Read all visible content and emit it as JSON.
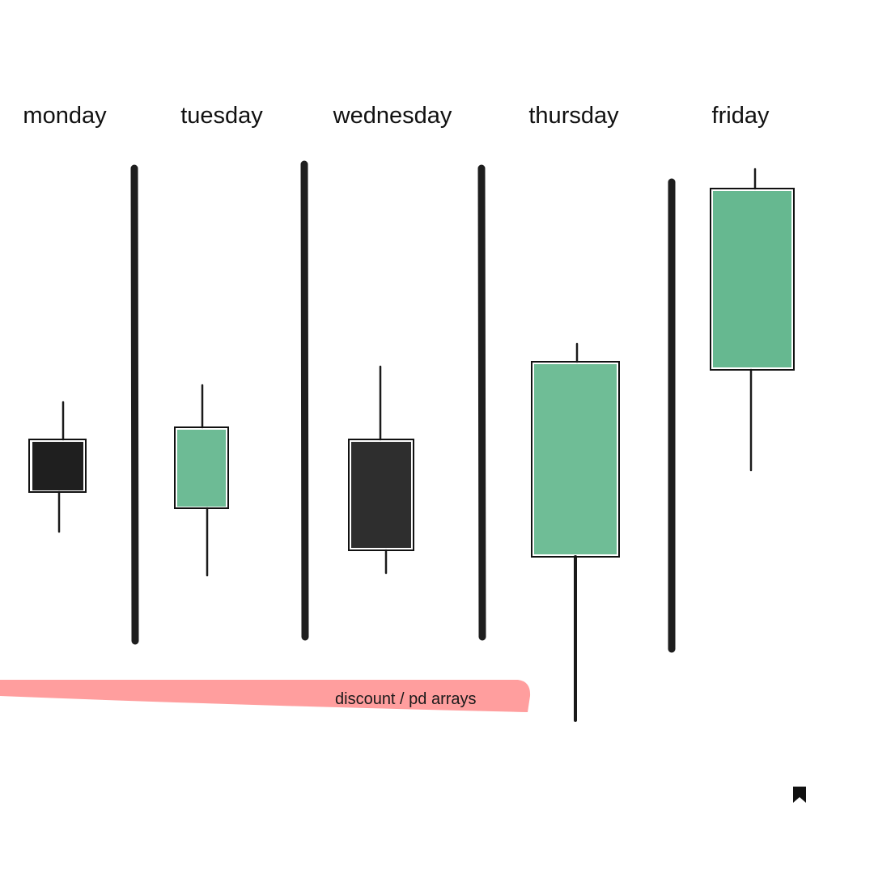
{
  "labels": [
    "monday",
    "tuesday",
    "wednesday",
    "thursday",
    "friday"
  ],
  "zone_label": "discount / pd arrays"
}
